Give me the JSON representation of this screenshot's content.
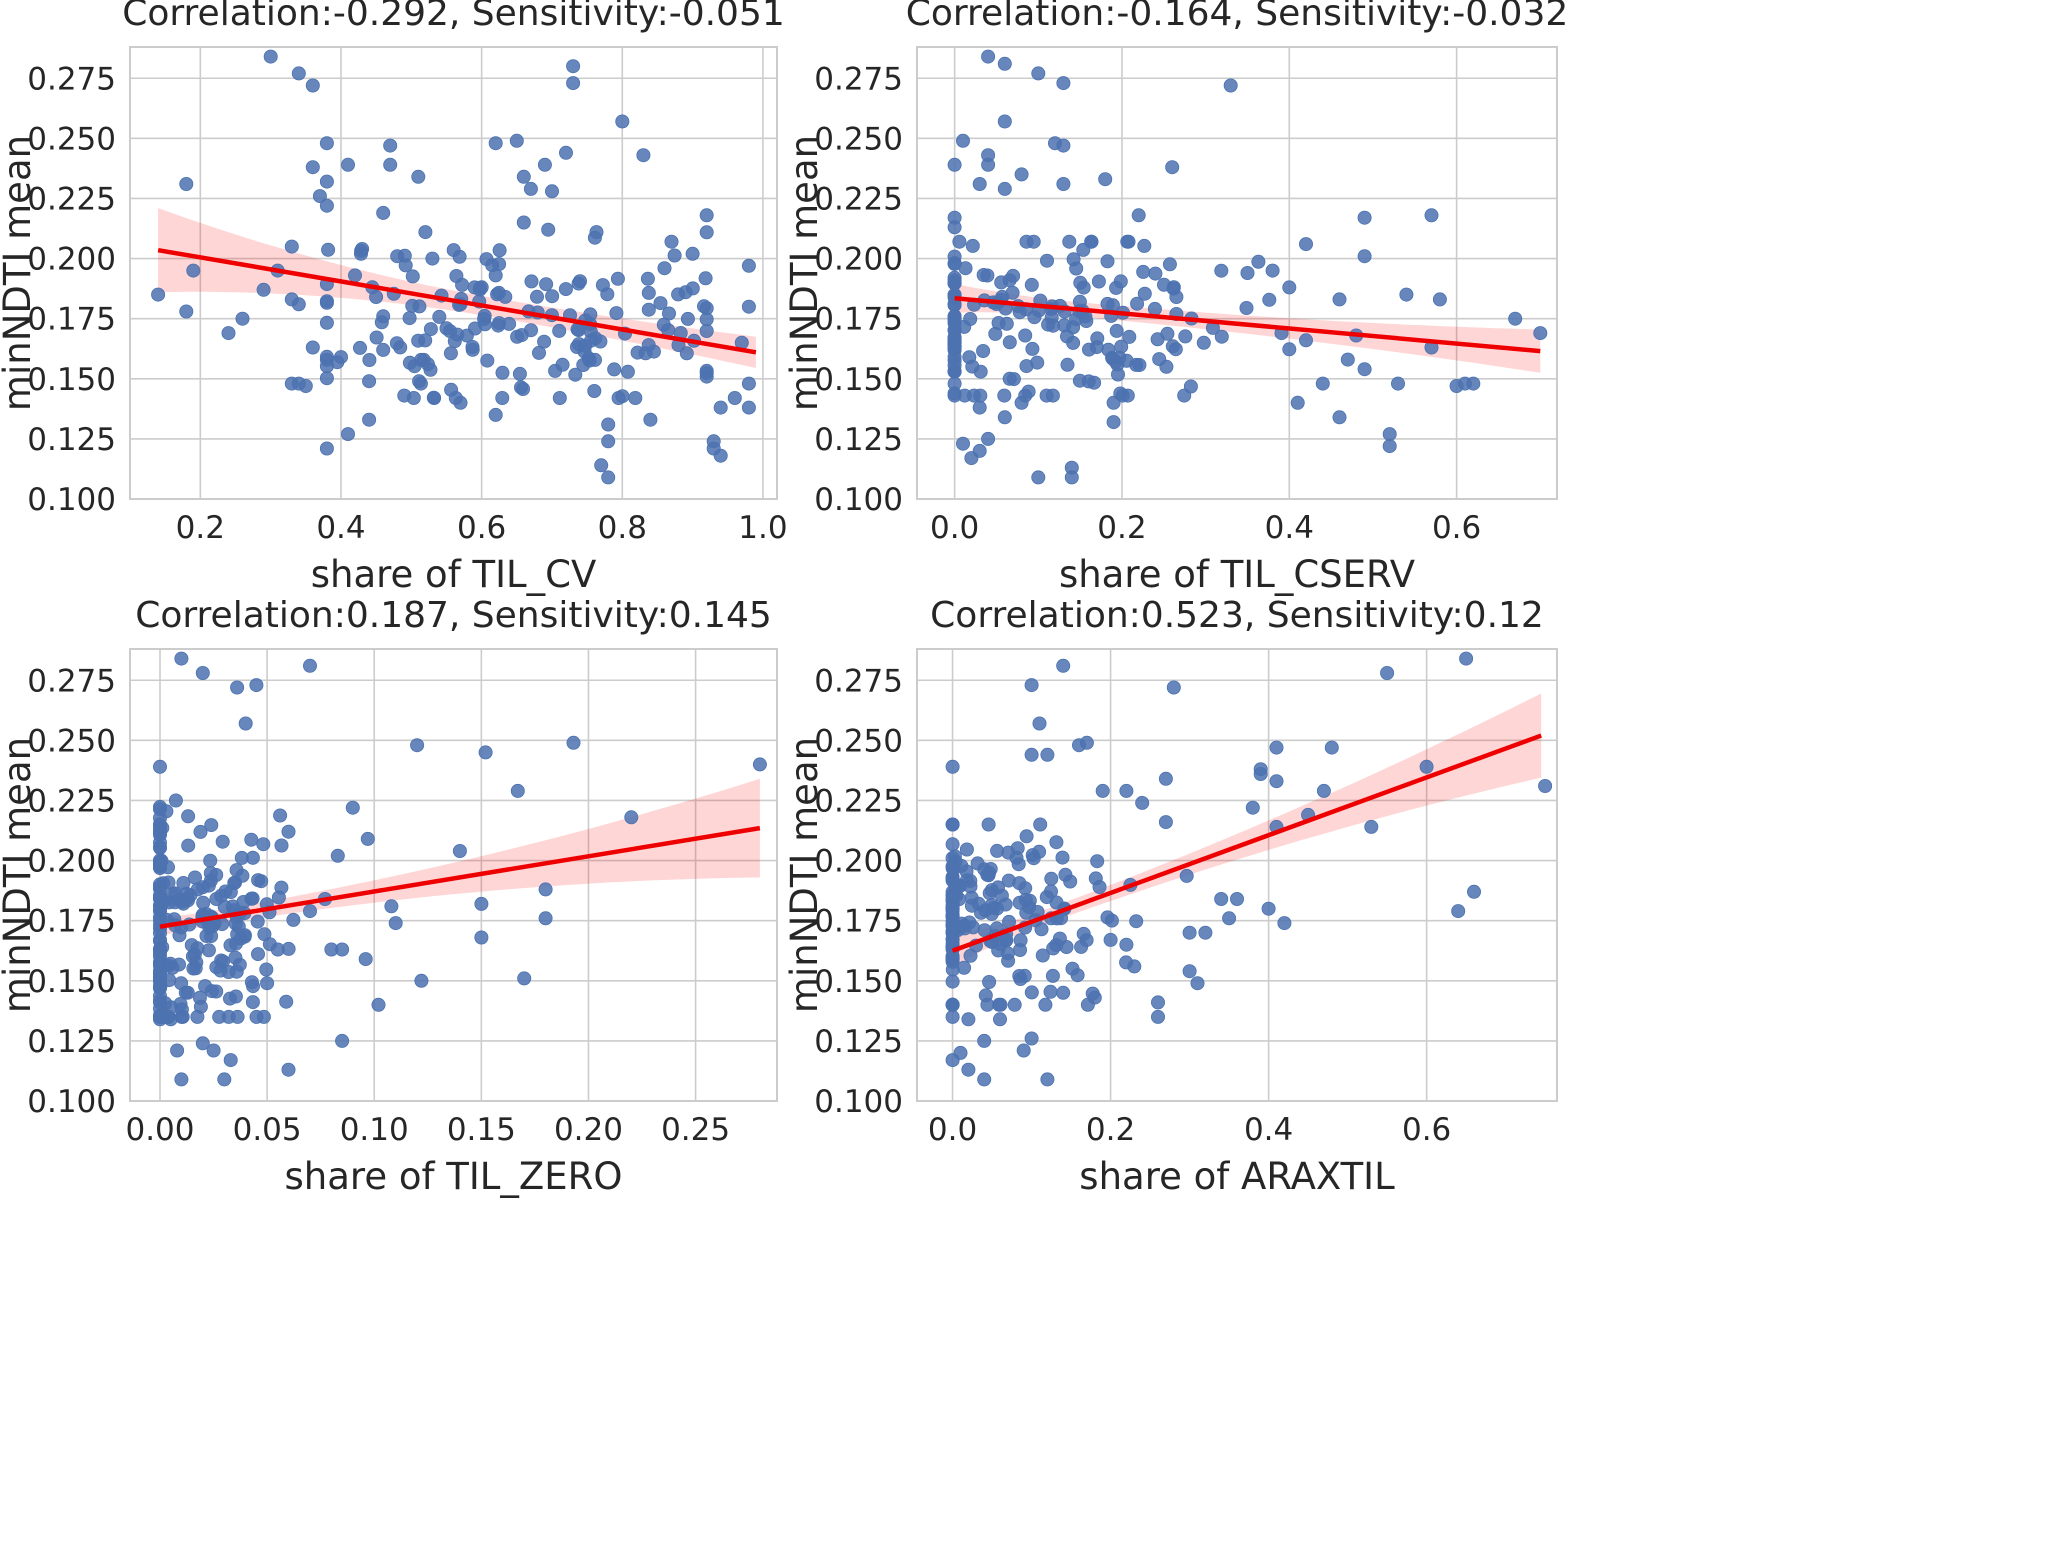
{
  "chart_data": [
    {
      "type": "scatter",
      "title": "Correlation:-0.292, Sensitivity:-0.051",
      "xlabel": "share of TIL_CV",
      "ylabel": "minNDTI mean",
      "xlim": [
        0.1,
        1.02
      ],
      "ylim": [
        0.1,
        0.288
      ],
      "xticks": [
        0.2,
        0.4,
        0.6,
        0.8,
        1.0
      ],
      "xtick_labels": [
        "0.2",
        "0.4",
        "0.6",
        "0.8",
        "1.0"
      ],
      "yticks": [
        0.1,
        0.125,
        0.15,
        0.175,
        0.2,
        0.225,
        0.25,
        0.275
      ],
      "ytick_labels": [
        "0.100",
        "0.125",
        "0.150",
        "0.175",
        "0.200",
        "0.225",
        "0.250",
        "0.275"
      ],
      "fit": {
        "x0": 0.14,
        "y0": 0.2035,
        "x1": 0.99,
        "y1": 0.161,
        "band_start": 0.0175,
        "band_mid": 0.004,
        "band_end": 0.0065,
        "band_min_at": 0.62
      },
      "seed": 11,
      "points": [
        [
          0.3,
          0.284
        ],
        [
          0.34,
          0.277
        ],
        [
          0.36,
          0.272
        ],
        [
          0.73,
          0.28
        ],
        [
          0.73,
          0.273
        ],
        [
          0.8,
          0.257
        ],
        [
          0.38,
          0.248
        ],
        [
          0.65,
          0.249
        ],
        [
          0.47,
          0.247
        ],
        [
          0.62,
          0.248
        ],
        [
          0.83,
          0.243
        ],
        [
          0.72,
          0.244
        ],
        [
          0.69,
          0.239
        ],
        [
          0.36,
          0.238
        ],
        [
          0.41,
          0.239
        ],
        [
          0.47,
          0.239
        ],
        [
          0.66,
          0.234
        ],
        [
          0.51,
          0.234
        ],
        [
          0.38,
          0.232
        ],
        [
          0.18,
          0.231
        ],
        [
          0.37,
          0.226
        ],
        [
          0.67,
          0.229
        ],
        [
          0.7,
          0.228
        ],
        [
          0.38,
          0.222
        ],
        [
          0.92,
          0.218
        ],
        [
          0.46,
          0.219
        ],
        [
          0.19,
          0.195
        ],
        [
          0.14,
          0.185
        ],
        [
          0.18,
          0.178
        ],
        [
          0.24,
          0.169
        ],
        [
          0.26,
          0.175
        ],
        [
          0.29,
          0.187
        ],
        [
          0.31,
          0.195
        ],
        [
          0.33,
          0.205
        ],
        [
          0.33,
          0.183
        ],
        [
          0.34,
          0.181
        ],
        [
          0.33,
          0.148
        ],
        [
          0.34,
          0.148
        ],
        [
          0.35,
          0.147
        ],
        [
          0.36,
          0.163
        ],
        [
          0.38,
          0.121
        ],
        [
          0.41,
          0.127
        ],
        [
          0.44,
          0.133
        ],
        [
          0.4,
          0.159
        ],
        [
          0.49,
          0.143
        ],
        [
          0.57,
          0.14
        ],
        [
          0.62,
          0.135
        ],
        [
          0.78,
          0.109
        ],
        [
          0.77,
          0.114
        ],
        [
          0.78,
          0.131
        ],
        [
          0.78,
          0.124
        ],
        [
          0.84,
          0.133
        ],
        [
          0.93,
          0.124
        ],
        [
          0.94,
          0.118
        ],
        [
          0.93,
          0.121
        ],
        [
          0.98,
          0.148
        ],
        [
          0.98,
          0.138
        ],
        [
          0.98,
          0.18
        ],
        [
          0.98,
          0.197
        ],
        [
          0.97,
          0.165
        ],
        [
          0.96,
          0.142
        ],
        [
          0.86,
          0.196
        ],
        [
          0.87,
          0.207
        ],
        [
          0.9,
          0.202
        ],
        [
          0.89,
          0.186
        ],
        [
          0.88,
          0.164
        ],
        [
          0.94,
          0.138
        ],
        [
          0.66,
          0.215
        ],
        [
          0.62,
          0.193
        ],
        [
          0.59,
          0.188
        ],
        [
          0.57,
          0.181
        ],
        [
          0.55,
          0.171
        ],
        [
          0.53,
          0.2
        ],
        [
          0.52,
          0.211
        ],
        [
          0.48,
          0.201
        ],
        [
          0.46,
          0.176
        ],
        [
          0.46,
          0.162
        ],
        [
          0.44,
          0.149
        ],
        [
          0.43,
          0.204
        ],
        [
          0.42,
          0.193
        ],
        [
          0.45,
          0.184
        ]
      ],
      "random_points": {
        "count": 160,
        "x_range": [
          0.38,
          0.92
        ],
        "y_range": [
          0.142,
          0.212
        ],
        "x_center": 0.66,
        "y_center": 0.172
      }
    },
    {
      "type": "scatter",
      "title": "Correlation:-0.164, Sensitivity:-0.032",
      "xlabel": "share of TIL_CSERV",
      "ylabel": "minNDTI mean",
      "xlim": [
        -0.045,
        0.72
      ],
      "ylim": [
        0.1,
        0.288
      ],
      "xticks": [
        0.0,
        0.2,
        0.4,
        0.6
      ],
      "xtick_labels": [
        "0.0",
        "0.2",
        "0.4",
        "0.6"
      ],
      "yticks": [
        0.1,
        0.125,
        0.15,
        0.175,
        0.2,
        0.225,
        0.25,
        0.275
      ],
      "ytick_labels": [
        "0.100",
        "0.125",
        "0.150",
        "0.175",
        "0.200",
        "0.225",
        "0.250",
        "0.275"
      ],
      "fit": {
        "x0": 0.0,
        "y0": 0.1835,
        "x1": 0.7,
        "y1": 0.1615,
        "band_start": 0.006,
        "band_mid": 0.003,
        "band_end": 0.009,
        "band_min_at": 0.15
      },
      "seed": 23,
      "points": [
        [
          0.04,
          0.284
        ],
        [
          0.06,
          0.281
        ],
        [
          0.1,
          0.277
        ],
        [
          0.13,
          0.273
        ],
        [
          0.33,
          0.272
        ],
        [
          0.06,
          0.257
        ],
        [
          0.01,
          0.249
        ],
        [
          0.12,
          0.248
        ],
        [
          0.13,
          0.247
        ],
        [
          0.04,
          0.243
        ],
        [
          0.04,
          0.239
        ],
        [
          0.0,
          0.239
        ],
        [
          0.26,
          0.238
        ],
        [
          0.08,
          0.235
        ],
        [
          0.18,
          0.233
        ],
        [
          0.13,
          0.231
        ],
        [
          0.06,
          0.229
        ],
        [
          0.03,
          0.231
        ],
        [
          0.49,
          0.217
        ],
        [
          0.57,
          0.218
        ],
        [
          0.0,
          0.217
        ],
        [
          0.0,
          0.213
        ],
        [
          0.22,
          0.218
        ],
        [
          0.42,
          0.206
        ],
        [
          0.49,
          0.201
        ],
        [
          0.38,
          0.195
        ],
        [
          0.35,
          0.194
        ],
        [
          0.4,
          0.188
        ],
        [
          0.46,
          0.183
        ],
        [
          0.54,
          0.185
        ],
        [
          0.58,
          0.183
        ],
        [
          0.67,
          0.175
        ],
        [
          0.7,
          0.169
        ],
        [
          0.57,
          0.163
        ],
        [
          0.48,
          0.168
        ],
        [
          0.49,
          0.154
        ],
        [
          0.53,
          0.148
        ],
        [
          0.44,
          0.148
        ],
        [
          0.47,
          0.158
        ],
        [
          0.42,
          0.166
        ],
        [
          0.41,
          0.14
        ],
        [
          0.46,
          0.134
        ],
        [
          0.52,
          0.127
        ],
        [
          0.52,
          0.122
        ],
        [
          0.61,
          0.148
        ],
        [
          0.62,
          0.148
        ],
        [
          0.6,
          0.147
        ],
        [
          0.14,
          0.113
        ],
        [
          0.14,
          0.109
        ],
        [
          0.1,
          0.109
        ],
        [
          0.04,
          0.125
        ],
        [
          0.03,
          0.12
        ],
        [
          0.02,
          0.117
        ],
        [
          0.0,
          0.148
        ],
        [
          0.0,
          0.165
        ],
        [
          0.01,
          0.123
        ],
        [
          0.03,
          0.138
        ],
        [
          0.06,
          0.134
        ],
        [
          0.19,
          0.132
        ],
        [
          0.19,
          0.14
        ],
        [
          0.08,
          0.14
        ]
      ],
      "random_points": {
        "count": 180,
        "x_range": [
          0.0,
          0.4
        ],
        "y_range": [
          0.143,
          0.207
        ],
        "x_center": 0.1,
        "y_center": 0.172
      }
    },
    {
      "type": "scatter",
      "title": "Correlation:0.187, Sensitivity:0.145",
      "xlabel": "share of TIL_ZERO",
      "ylabel": "minNDTI mean",
      "xlim": [
        -0.014,
        0.288
      ],
      "ylim": [
        0.1,
        0.288
      ],
      "xticks": [
        0.0,
        0.05,
        0.1,
        0.15,
        0.2,
        0.25
      ],
      "xtick_labels": [
        "0.00",
        "0.05",
        "0.10",
        "0.15",
        "0.20",
        "0.25"
      ],
      "yticks": [
        0.1,
        0.125,
        0.15,
        0.175,
        0.2,
        0.225,
        0.25,
        0.275
      ],
      "ytick_labels": [
        "0.100",
        "0.125",
        "0.150",
        "0.175",
        "0.200",
        "0.225",
        "0.250",
        "0.275"
      ],
      "fit": {
        "x0": 0.0,
        "y0": 0.1725,
        "x1": 0.28,
        "y1": 0.2135,
        "band_start": 0.004,
        "band_mid": 0.003,
        "band_end": 0.0205,
        "band_min_at": 0.02
      },
      "seed": 37,
      "points": [
        [
          0.01,
          0.284
        ],
        [
          0.02,
          0.278
        ],
        [
          0.07,
          0.281
        ],
        [
          0.036,
          0.272
        ],
        [
          0.045,
          0.273
        ],
        [
          0.04,
          0.257
        ],
        [
          0.12,
          0.248
        ],
        [
          0.193,
          0.249
        ],
        [
          0.152,
          0.245
        ],
        [
          0.28,
          0.24
        ],
        [
          0.0,
          0.239
        ],
        [
          0.167,
          0.229
        ],
        [
          0.22,
          0.218
        ],
        [
          0.14,
          0.204
        ],
        [
          0.097,
          0.209
        ],
        [
          0.09,
          0.222
        ],
        [
          0.18,
          0.188
        ],
        [
          0.15,
          0.182
        ],
        [
          0.15,
          0.168
        ],
        [
          0.18,
          0.176
        ],
        [
          0.17,
          0.151
        ],
        [
          0.122,
          0.15
        ],
        [
          0.102,
          0.14
        ],
        [
          0.096,
          0.159
        ],
        [
          0.085,
          0.125
        ],
        [
          0.06,
          0.113
        ],
        [
          0.03,
          0.109
        ],
        [
          0.01,
          0.109
        ],
        [
          0.033,
          0.117
        ],
        [
          0.02,
          0.124
        ],
        [
          0.025,
          0.121
        ],
        [
          0.008,
          0.121
        ],
        [
          0.05,
          0.149
        ],
        [
          0.055,
          0.163
        ],
        [
          0.083,
          0.202
        ],
        [
          0.077,
          0.184
        ],
        [
          0.07,
          0.179
        ],
        [
          0.08,
          0.163
        ],
        [
          0.11,
          0.174
        ],
        [
          0.108,
          0.181
        ],
        [
          0.085,
          0.163
        ],
        [
          0.0,
          0.134
        ],
        [
          0.005,
          0.134
        ],
        [
          0.06,
          0.212
        ]
      ],
      "random_points": {
        "count": 220,
        "x_range": [
          0.0,
          0.07
        ],
        "y_range": [
          0.135,
          0.225
        ],
        "x_center": 0.012,
        "y_center": 0.174
      }
    },
    {
      "type": "scatter",
      "title": "Correlation:0.523, Sensitivity:0.12",
      "xlabel": "share of ARAXTIL",
      "ylabel": "minNDTI mean",
      "xlim": [
        -0.045,
        0.765
      ],
      "ylim": [
        0.1,
        0.288
      ],
      "xticks": [
        0.0,
        0.2,
        0.4,
        0.6
      ],
      "xtick_labels": [
        "0.0",
        "0.2",
        "0.4",
        "0.6"
      ],
      "yticks": [
        0.1,
        0.125,
        0.15,
        0.175,
        0.2,
        0.225,
        0.25,
        0.275
      ],
      "ytick_labels": [
        "0.100",
        "0.125",
        "0.150",
        "0.175",
        "0.200",
        "0.225",
        "0.250",
        "0.275"
      ],
      "fit": {
        "x0": 0.0,
        "y0": 0.1625,
        "x1": 0.745,
        "y1": 0.252,
        "band_start": 0.007,
        "band_mid": 0.003,
        "band_end": 0.0175,
        "band_min_at": 0.1
      },
      "seed": 53,
      "points": [
        [
          0.65,
          0.284
        ],
        [
          0.55,
          0.278
        ],
        [
          0.28,
          0.272
        ],
        [
          0.1,
          0.273
        ],
        [
          0.14,
          0.281
        ],
        [
          0.11,
          0.257
        ],
        [
          0.17,
          0.249
        ],
        [
          0.16,
          0.248
        ],
        [
          0.41,
          0.247
        ],
        [
          0.48,
          0.247
        ],
        [
          0.12,
          0.244
        ],
        [
          0.1,
          0.244
        ],
        [
          0.39,
          0.238
        ],
        [
          0.39,
          0.236
        ],
        [
          0.0,
          0.239
        ],
        [
          0.6,
          0.239
        ],
        [
          0.41,
          0.233
        ],
        [
          0.47,
          0.229
        ],
        [
          0.75,
          0.231
        ],
        [
          0.27,
          0.234
        ],
        [
          0.22,
          0.229
        ],
        [
          0.19,
          0.229
        ],
        [
          0.24,
          0.224
        ],
        [
          0.38,
          0.222
        ],
        [
          0.45,
          0.219
        ],
        [
          0.53,
          0.214
        ],
        [
          0.41,
          0.214
        ],
        [
          0.27,
          0.216
        ],
        [
          0.66,
          0.187
        ],
        [
          0.64,
          0.179
        ],
        [
          0.4,
          0.18
        ],
        [
          0.42,
          0.174
        ],
        [
          0.35,
          0.176
        ],
        [
          0.34,
          0.184
        ],
        [
          0.36,
          0.184
        ],
        [
          0.3,
          0.17
        ],
        [
          0.32,
          0.17
        ],
        [
          0.3,
          0.154
        ],
        [
          0.31,
          0.149
        ],
        [
          0.26,
          0.141
        ],
        [
          0.26,
          0.135
        ],
        [
          0.22,
          0.165
        ],
        [
          0.23,
          0.156
        ],
        [
          0.2,
          0.167
        ],
        [
          0.18,
          0.143
        ],
        [
          0.14,
          0.145
        ],
        [
          0.12,
          0.109
        ],
        [
          0.1,
          0.126
        ],
        [
          0.09,
          0.121
        ],
        [
          0.04,
          0.109
        ],
        [
          0.02,
          0.113
        ],
        [
          0.0,
          0.117
        ],
        [
          0.01,
          0.12
        ],
        [
          0.0,
          0.135
        ],
        [
          0.02,
          0.134
        ],
        [
          0.04,
          0.125
        ],
        [
          0.06,
          0.134
        ]
      ],
      "random_points": {
        "count": 180,
        "x_range": [
          0.0,
          0.3
        ],
        "y_range": [
          0.14,
          0.215
        ],
        "x_center": 0.05,
        "y_center": 0.175
      }
    }
  ]
}
